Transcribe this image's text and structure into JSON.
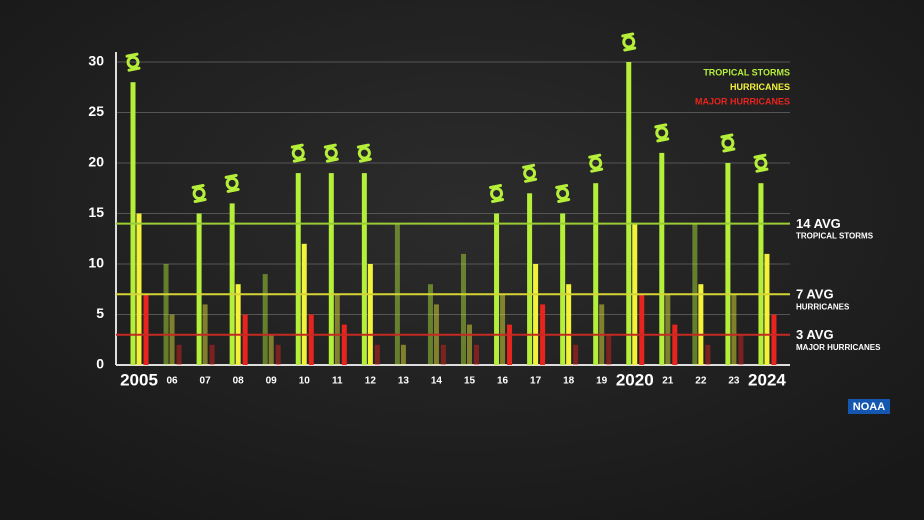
{
  "chart_data": {
    "type": "bar",
    "categories": [
      "2005",
      "06",
      "07",
      "08",
      "09",
      "10",
      "11",
      "12",
      "13",
      "14",
      "15",
      "16",
      "17",
      "18",
      "19",
      "2020",
      "21",
      "22",
      "23",
      "2024"
    ],
    "series": [
      {
        "name": "TROPICAL STORMS",
        "color": "#b6ef3a",
        "values": [
          28,
          10,
          15,
          16,
          9,
          19,
          19,
          19,
          14,
          8,
          11,
          15,
          17,
          15,
          18,
          30,
          21,
          14,
          20,
          18
        ]
      },
      {
        "name": "HURRICANES",
        "color": "#f2f23a",
        "values": [
          15,
          5,
          6,
          8,
          3,
          12,
          7,
          10,
          2,
          6,
          4,
          7,
          10,
          8,
          6,
          14,
          7,
          8,
          7,
          11
        ]
      },
      {
        "name": "MAJOR HURRICANES",
        "color": "#e8241e",
        "values": [
          7,
          2,
          2,
          5,
          2,
          5,
          4,
          2,
          0,
          2,
          2,
          4,
          6,
          2,
          3,
          7,
          4,
          2,
          3,
          5
        ]
      }
    ],
    "averages": [
      {
        "value": 14,
        "label": "14 AVG",
        "sublabel": "TROPICAL STORMS",
        "color": "#9ccc34"
      },
      {
        "value": 7,
        "label": "7 AVG",
        "sublabel": "HURRICANES",
        "color": "#d4d436"
      },
      {
        "value": 3,
        "label": "3 AVG",
        "sublabel": "MAJOR HURRICANES",
        "color": "#c42a22"
      }
    ],
    "ylim": [
      0,
      30
    ],
    "yticks": [
      0,
      5,
      10,
      15,
      20,
      25,
      30
    ],
    "grid": true,
    "legend": "top-right",
    "source": "NOAA"
  }
}
